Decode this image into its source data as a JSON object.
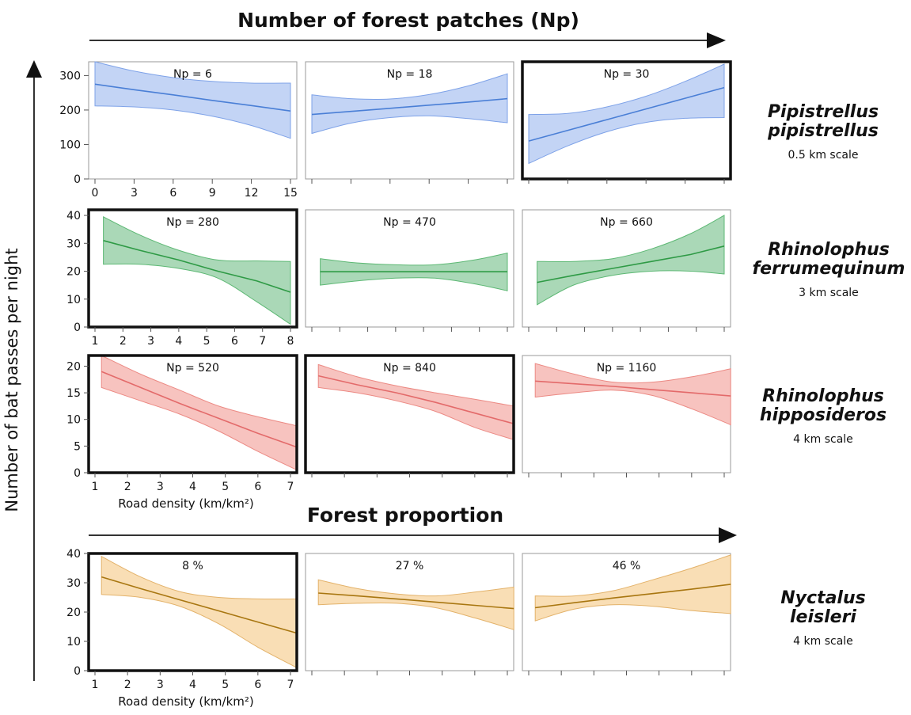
{
  "headers": {
    "top": "Number of forest patches (Np)",
    "middle": "Forest proportion"
  },
  "y_axis_label": "Number of bat passes per night",
  "colors": {
    "pipistrellus": "#4a7fd6",
    "ferrumequinum": "#2e9a45",
    "hipposideros": "#e36a6a",
    "leisleri": "#b07d10"
  },
  "rows": [
    {
      "species": [
        "Pipistrellus",
        "pipistrellus"
      ],
      "scale": "0.5 km scale",
      "xlabel": "",
      "xlim": [
        0,
        15
      ],
      "xticks": [
        "0",
        "3",
        "6",
        "9",
        "12",
        "15"
      ],
      "ylim": [
        0,
        340
      ],
      "yticks": [
        "0",
        "100",
        "200",
        "300"
      ],
      "fill": "#b9cdf3",
      "stroke": "#7ea2e8",
      "line": "#4a7fd6"
    },
    {
      "species": [
        "Rhinolophus",
        "ferrumequinum"
      ],
      "scale": "3 km scale",
      "xlabel": "",
      "xlim": [
        1,
        8
      ],
      "xticks": [
        "1",
        "2",
        "3",
        "4",
        "5",
        "6",
        "7",
        "8"
      ],
      "ylim": [
        0,
        42
      ],
      "yticks": [
        "0",
        "10",
        "20",
        "30",
        "40"
      ],
      "fill": "#9bd1aa",
      "stroke": "#5db874",
      "line": "#2e9a45"
    },
    {
      "species": [
        "Rhinolophus",
        "hipposideros"
      ],
      "scale": "4 km scale",
      "xlabel": "Road density (km/km²)",
      "xlim": [
        1,
        7
      ],
      "xticks": [
        "1",
        "2",
        "3",
        "4",
        "5",
        "6",
        "7"
      ],
      "ylim": [
        0,
        22
      ],
      "yticks": [
        "0",
        "5",
        "10",
        "15",
        "20"
      ],
      "fill": "#f6b8b4",
      "stroke": "#ec8a84",
      "line": "#e36a6a"
    },
    {
      "species": [
        "Nyctalus",
        "leisleri"
      ],
      "scale": "4 km scale",
      "xlabel": "Road density (km/km²)",
      "xlim": [
        1,
        7
      ],
      "xticks": [
        "1",
        "2",
        "3",
        "4",
        "5",
        "6",
        "7"
      ],
      "ylim": [
        0,
        40
      ],
      "yticks": [
        "0",
        "10",
        "20",
        "30",
        "40"
      ],
      "fill": "#f8d8a8",
      "stroke": "#e3b26a",
      "line": "#a87610"
    }
  ],
  "chart_data": [
    {
      "type": "line",
      "panel": "Np = 6",
      "x": [
        0,
        3,
        6,
        9,
        12,
        15
      ],
      "series": [
        {
          "values": [
            275,
            259,
            244,
            228,
            213,
            197
          ],
          "lower": [
            212,
            209,
            200,
            182,
            155,
            118
          ],
          "upper": [
            340,
            313,
            294,
            283,
            278,
            278
          ]
        }
      ],
      "ylim": [
        0,
        340
      ],
      "highlighted": false
    },
    {
      "type": "line",
      "panel": "Np = 18",
      "x": [
        0,
        3,
        6,
        9,
        12,
        15
      ],
      "series": [
        {
          "values": [
            187,
            196,
            205,
            214,
            223,
            233
          ],
          "lower": [
            132,
            162,
            178,
            183,
            175,
            163
          ],
          "upper": [
            244,
            233,
            232,
            245,
            270,
            305
          ]
        }
      ],
      "ylim": [
        0,
        340
      ],
      "highlighted": false
    },
    {
      "type": "line",
      "panel": "Np = 30",
      "x": [
        0,
        3,
        6,
        9,
        12,
        15
      ],
      "series": [
        {
          "values": [
            110,
            141,
            172,
            203,
            234,
            265
          ],
          "lower": [
            45,
            96,
            137,
            164,
            176,
            178
          ],
          "upper": [
            187,
            190,
            209,
            240,
            283,
            333
          ]
        }
      ],
      "ylim": [
        0,
        340
      ],
      "highlighted": true
    },
    {
      "type": "line",
      "panel": "Np = 280",
      "x": [
        1.3,
        2.6,
        4,
        5.4,
        6.8,
        8
      ],
      "series": [
        {
          "values": [
            31,
            27.5,
            24,
            20,
            16.5,
            12.5
          ],
          "lower": [
            22.5,
            22.5,
            21,
            17.5,
            9,
            1
          ],
          "upper": [
            39.5,
            33,
            27.5,
            24,
            23.7,
            23.5
          ]
        }
      ],
      "ylim": [
        0,
        42
      ],
      "highlighted": true
    },
    {
      "type": "line",
      "panel": "Np = 470",
      "x": [
        1.3,
        2.6,
        4,
        5.4,
        6.8,
        8
      ],
      "series": [
        {
          "values": [
            19.8,
            19.8,
            19.8,
            19.8,
            19.8,
            19.8
          ],
          "lower": [
            15,
            16.5,
            17.5,
            17.5,
            15.5,
            13
          ],
          "upper": [
            24.5,
            23,
            22.3,
            22.3,
            24,
            26.5
          ]
        }
      ],
      "ylim": [
        0,
        42
      ],
      "highlighted": false
    },
    {
      "type": "line",
      "panel": "Np = 660",
      "x": [
        1.3,
        2.6,
        4,
        5.4,
        6.8,
        8
      ],
      "series": [
        {
          "values": [
            16,
            18.5,
            21,
            23.5,
            26,
            29
          ],
          "lower": [
            8,
            15,
            18.5,
            20,
            20,
            19
          ],
          "upper": [
            23.5,
            23.5,
            24.5,
            28,
            33.5,
            40
          ]
        }
      ],
      "ylim": [
        0,
        42
      ],
      "highlighted": false
    },
    {
      "type": "line",
      "panel": "Np = 520",
      "x": [
        1.2,
        2.4,
        3.6,
        4.8,
        6,
        7.2
      ],
      "series": [
        {
          "values": [
            19,
            16,
            13,
            10.2,
            7.4,
            4.8
          ],
          "lower": [
            16,
            13.5,
            11,
            7.8,
            4,
            0.5
          ],
          "upper": [
            22,
            18.5,
            15.5,
            12.5,
            10.5,
            8.8
          ]
        }
      ],
      "ylim": [
        0,
        22
      ],
      "highlighted": true
    },
    {
      "type": "line",
      "panel": "Np = 840",
      "x": [
        1.2,
        2.4,
        3.6,
        4.8,
        6,
        7.2
      ],
      "series": [
        {
          "values": [
            18.2,
            16.5,
            15,
            13.2,
            11.2,
            9.2
          ],
          "lower": [
            16,
            15,
            13.5,
            11.5,
            8.5,
            6.2
          ],
          "upper": [
            20.3,
            18,
            16.3,
            15,
            13.8,
            12.5
          ]
        }
      ],
      "ylim": [
        0,
        22
      ],
      "highlighted": true
    },
    {
      "type": "line",
      "panel": "Np = 1160",
      "x": [
        1.2,
        2.4,
        3.6,
        4.8,
        6,
        7.2
      ],
      "series": [
        {
          "values": [
            17.2,
            16.7,
            16.2,
            15.6,
            15,
            14.4
          ],
          "lower": [
            14.2,
            15,
            15.5,
            14.5,
            12,
            9
          ],
          "upper": [
            20.5,
            18.5,
            17,
            17,
            18,
            19.5
          ]
        }
      ],
      "ylim": [
        0,
        22
      ],
      "highlighted": false
    },
    {
      "type": "line",
      "panel": "8 %",
      "x": [
        1.2,
        2.4,
        3.6,
        4.8,
        6,
        7.2
      ],
      "series": [
        {
          "values": [
            32,
            28,
            24.2,
            20.4,
            16.6,
            12.8
          ],
          "lower": [
            26,
            25,
            22,
            16,
            8,
            1
          ],
          "upper": [
            39,
            32,
            27,
            25,
            24.5,
            24.5
          ]
        }
      ],
      "ylim": [
        0,
        40
      ],
      "highlighted": true
    },
    {
      "type": "line",
      "panel": "27 %",
      "x": [
        1.2,
        2.4,
        3.6,
        4.8,
        6,
        7.2
      ],
      "series": [
        {
          "values": [
            26.5,
            25.5,
            24.5,
            23.4,
            22.3,
            21.2
          ],
          "lower": [
            22.5,
            23,
            23,
            21.5,
            18,
            14
          ],
          "upper": [
            31,
            28,
            26.2,
            25.5,
            26.8,
            28.5
          ]
        }
      ],
      "ylim": [
        0,
        40
      ],
      "highlighted": false
    },
    {
      "type": "line",
      "panel": "46 %",
      "x": [
        1.2,
        2.4,
        3.6,
        4.8,
        6,
        7.2
      ],
      "series": [
        {
          "values": [
            21.5,
            23.2,
            24.8,
            26.3,
            27.8,
            29.5
          ],
          "lower": [
            17,
            21,
            22.5,
            22,
            20.5,
            19.5
          ],
          "upper": [
            25.5,
            25.5,
            27.3,
            31,
            35,
            39.5
          ]
        }
      ],
      "ylim": [
        0,
        40
      ],
      "highlighted": false
    }
  ]
}
